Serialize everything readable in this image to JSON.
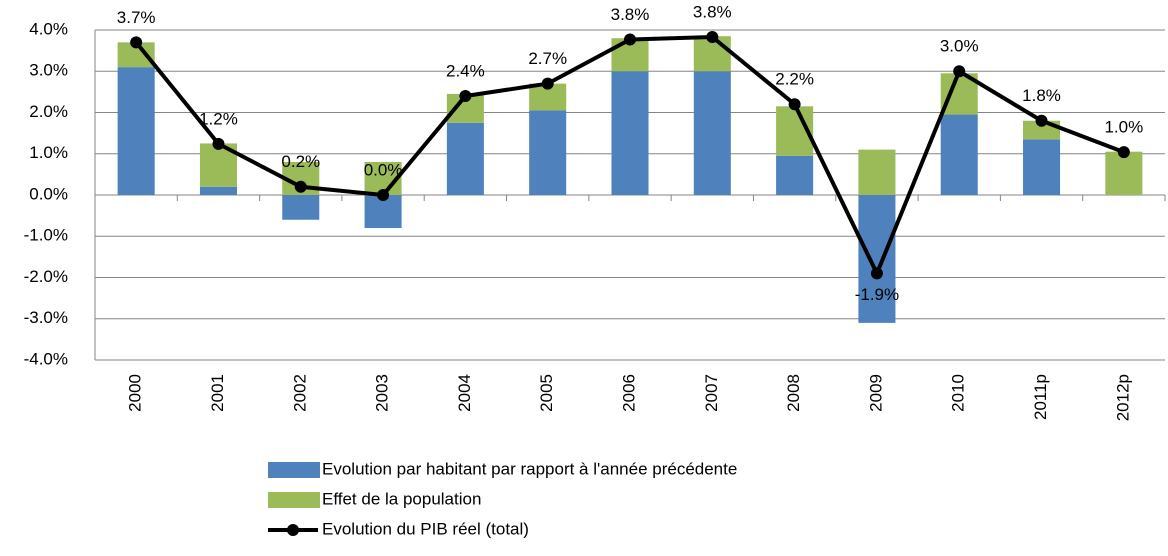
{
  "chart_data": {
    "type": "bar",
    "categories": [
      "2000",
      "2001",
      "2002",
      "2003",
      "2004",
      "2005",
      "2006",
      "2007",
      "2008",
      "2009",
      "2010",
      "2011p",
      "2012p"
    ],
    "stacked": true,
    "series": [
      {
        "name": "Evolution par habitant par rapport à l'année précédente",
        "color": "#4f81bd",
        "type": "bar",
        "values": [
          3.1,
          0.2,
          -0.6,
          -0.8,
          1.75,
          2.05,
          3.0,
          3.0,
          0.95,
          -3.1,
          1.95,
          1.35,
          0
        ]
      },
      {
        "name": "Effet de la population",
        "color": "#9bbb59",
        "type": "bar",
        "values": [
          0.6,
          1.05,
          0.8,
          0.8,
          0.7,
          0.65,
          0.8,
          0.85,
          1.2,
          1.1,
          1.0,
          0.45,
          1.05
        ]
      },
      {
        "name": "Evolution du PIB réel (total)",
        "color": "#000000",
        "type": "line",
        "values": [
          3.7,
          1.24,
          0.2,
          0.0,
          2.4,
          2.7,
          3.77,
          3.83,
          2.2,
          -1.9,
          3.0,
          1.8,
          1.04
        ],
        "value_labels": [
          "3.7%",
          "1.2%",
          "0.2%",
          "0.0%",
          "2.4%",
          "2.7%",
          "3.8%",
          "3.8%",
          "2.2%",
          "-1.9%",
          "3.0%",
          "1.8%",
          "1.0%"
        ]
      }
    ],
    "ylim": [
      -4,
      4
    ],
    "yticks": [
      {
        "value": -4,
        "label": "-4.0%"
      },
      {
        "value": -3,
        "label": "-3.0%"
      },
      {
        "value": -2,
        "label": "-2.0%"
      },
      {
        "value": -1,
        "label": "-1.0%"
      },
      {
        "value": 0,
        "label": "0.0%"
      },
      {
        "value": 1,
        "label": "1.0%"
      },
      {
        "value": 2,
        "label": "2.0%"
      },
      {
        "value": 3,
        "label": "3.0%"
      },
      {
        "value": 4,
        "label": "4.0%"
      }
    ],
    "grid": true
  }
}
